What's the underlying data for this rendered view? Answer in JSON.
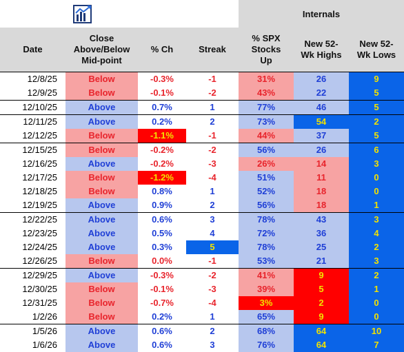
{
  "header": {
    "internals_label": "Internals",
    "columns": [
      "Date",
      "Close Above/Below Mid-point",
      "% Ch",
      "Streak",
      "% SPX Stocks Up",
      "New 52-Wk Highs",
      "New 52-Wk Lows"
    ]
  },
  "colors": {
    "blue_text": "#1f3fd6",
    "red_text": "#e8242c",
    "yellow_text": "#f2e200",
    "pink_bg": "#f7a3a3",
    "light_blue_bg": "#b7c7ee",
    "red_bg": "#ff0000",
    "blue_bg": "#0a64e8"
  },
  "rows": [
    {
      "date": "12/8/25",
      "close": "Below",
      "pch": "-0.3%",
      "streak": "-1",
      "spx": "31%",
      "highs": "26",
      "lows": "9"
    },
    {
      "date": "12/9/25",
      "close": "Below",
      "pch": "-0.1%",
      "streak": "-2",
      "spx": "43%",
      "highs": "22",
      "lows": "5"
    },
    {
      "date": "12/10/25",
      "close": "Above",
      "pch": "0.7%",
      "streak": "1",
      "spx": "77%",
      "highs": "46",
      "lows": "5"
    },
    {
      "date": "12/11/25",
      "close": "Above",
      "pch": "0.2%",
      "streak": "2",
      "spx": "73%",
      "highs": "54",
      "lows": "2"
    },
    {
      "date": "12/12/25",
      "close": "Below",
      "pch": "-1.1%",
      "streak": "-1",
      "spx": "44%",
      "highs": "37",
      "lows": "5"
    },
    {
      "date": "12/15/25",
      "close": "Below",
      "pch": "-0.2%",
      "streak": "-2",
      "spx": "56%",
      "highs": "26",
      "lows": "6"
    },
    {
      "date": "12/16/25",
      "close": "Above",
      "pch": "-0.2%",
      "streak": "-3",
      "spx": "26%",
      "highs": "14",
      "lows": "3"
    },
    {
      "date": "12/17/25",
      "close": "Below",
      "pch": "-1.2%",
      "streak": "-4",
      "spx": "51%",
      "highs": "11",
      "lows": "0"
    },
    {
      "date": "12/18/25",
      "close": "Below",
      "pch": "0.8%",
      "streak": "1",
      "spx": "52%",
      "highs": "18",
      "lows": "0"
    },
    {
      "date": "12/19/25",
      "close": "Above",
      "pch": "0.9%",
      "streak": "2",
      "spx": "56%",
      "highs": "18",
      "lows": "1"
    },
    {
      "date": "12/22/25",
      "close": "Above",
      "pch": "0.6%",
      "streak": "3",
      "spx": "78%",
      "highs": "43",
      "lows": "3"
    },
    {
      "date": "12/23/25",
      "close": "Above",
      "pch": "0.5%",
      "streak": "4",
      "spx": "72%",
      "highs": "36",
      "lows": "4"
    },
    {
      "date": "12/24/25",
      "close": "Above",
      "pch": "0.3%",
      "streak": "5",
      "spx": "78%",
      "highs": "25",
      "lows": "2"
    },
    {
      "date": "12/26/25",
      "close": "Below",
      "pch": "0.0%",
      "streak": "-1",
      "spx": "53%",
      "highs": "21",
      "lows": "3"
    },
    {
      "date": "12/29/25",
      "close": "Above",
      "pch": "-0.3%",
      "streak": "-2",
      "spx": "41%",
      "highs": "9",
      "lows": "2"
    },
    {
      "date": "12/30/25",
      "close": "Below",
      "pch": "-0.1%",
      "streak": "-3",
      "spx": "39%",
      "highs": "5",
      "lows": "1"
    },
    {
      "date": "12/31/25",
      "close": "Below",
      "pch": "-0.7%",
      "streak": "-4",
      "spx": "3%",
      "highs": "2",
      "lows": "0"
    },
    {
      "date": "1/2/26",
      "close": "Below",
      "pch": "0.2%",
      "streak": "1",
      "spx": "65%",
      "highs": "9",
      "lows": "0"
    },
    {
      "date": "1/5/26",
      "close": "Above",
      "pch": "0.6%",
      "streak": "2",
      "spx": "68%",
      "highs": "64",
      "lows": "10"
    },
    {
      "date": "1/6/26",
      "close": "Above",
      "pch": "0.6%",
      "streak": "3",
      "spx": "76%",
      "highs": "64",
      "lows": "7"
    }
  ]
}
